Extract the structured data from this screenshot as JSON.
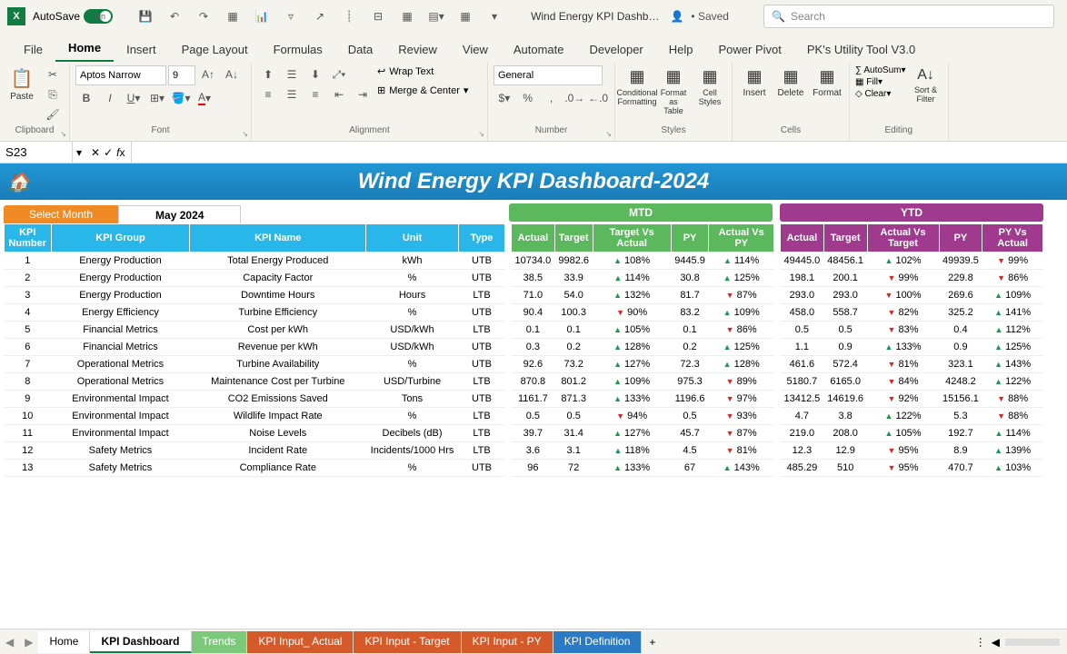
{
  "titlebar": {
    "autosave": "AutoSave",
    "autosave_on": "On",
    "doc": "Wind Energy KPI Dashb…",
    "saved": "• Saved",
    "search_ph": "Search"
  },
  "tabs": [
    "File",
    "Home",
    "Insert",
    "Page Layout",
    "Formulas",
    "Data",
    "Review",
    "View",
    "Automate",
    "Developer",
    "Help",
    "Power Pivot",
    "PK's Utility Tool V3.0"
  ],
  "ribbon": {
    "paste": "Paste",
    "clipboard": "Clipboard",
    "font_name": "Aptos Narrow",
    "font_size": "9",
    "font": "Font",
    "alignment": "Alignment",
    "wrap": "Wrap Text",
    "merge": "Merge & Center",
    "number_format": "General",
    "number": "Number",
    "cond": "Conditional Formatting",
    "fmtas": "Format as Table",
    "cellst": "Cell Styles",
    "styles": "Styles",
    "insert": "Insert",
    "delete": "Delete",
    "format": "Format",
    "cells": "Cells",
    "autosum": "AutoSum",
    "fill": "Fill",
    "clear": "Clear",
    "sort": "Sort & Filter",
    "editing": "Editing"
  },
  "namebox": "S23",
  "dashboard": {
    "title": "Wind Energy KPI Dashboard-2024",
    "select_month": "Select Month",
    "month": "May 2024",
    "mtd": "MTD",
    "ytd": "YTD"
  },
  "cols_main": [
    "KPI Number",
    "KPI Group",
    "KPI Name",
    "Unit",
    "Type"
  ],
  "cols_mtd": [
    "Actual",
    "Target",
    "Target Vs Actual",
    "PY",
    "Actual Vs PY"
  ],
  "cols_ytd": [
    "Actual",
    "Target",
    "Actual Vs Target",
    "PY",
    "PY Vs Actual"
  ],
  "rows": [
    {
      "n": "1",
      "g": "Energy Production",
      "name": "Total Energy Produced",
      "u": "kWh",
      "t": "UTB",
      "ma": "10734.0",
      "mt": "9982.6",
      "mtp": "108%",
      "mtpu": 1,
      "mpy": "9445.9",
      "map": "114%",
      "mapu": 1,
      "ya": "49445.0",
      "yt": "48456.1",
      "ytp": "102%",
      "ytpu": 1,
      "ypy": "49939.5",
      "yap": "99%",
      "yapu": 0
    },
    {
      "n": "2",
      "g": "Energy Production",
      "name": "Capacity Factor",
      "u": "%",
      "t": "UTB",
      "ma": "38.5",
      "mt": "33.9",
      "mtp": "114%",
      "mtpu": 1,
      "mpy": "30.8",
      "map": "125%",
      "mapu": 1,
      "ya": "198.1",
      "yt": "200.1",
      "ytp": "99%",
      "ytpu": 0,
      "ypy": "229.8",
      "yap": "86%",
      "yapu": 0
    },
    {
      "n": "3",
      "g": "Energy Production",
      "name": "Downtime Hours",
      "u": "Hours",
      "t": "LTB",
      "ma": "71.0",
      "mt": "54.0",
      "mtp": "132%",
      "mtpu": 1,
      "mpy": "81.7",
      "map": "87%",
      "mapu": 0,
      "ya": "293.0",
      "yt": "293.0",
      "ytp": "100%",
      "ytpu": 0,
      "ypy": "269.6",
      "yap": "109%",
      "yapu": 1
    },
    {
      "n": "4",
      "g": "Energy Efficiency",
      "name": "Turbine Efficiency",
      "u": "%",
      "t": "UTB",
      "ma": "90.4",
      "mt": "100.3",
      "mtp": "90%",
      "mtpu": 0,
      "mpy": "83.2",
      "map": "109%",
      "mapu": 1,
      "ya": "458.0",
      "yt": "558.7",
      "ytp": "82%",
      "ytpu": 0,
      "ypy": "325.2",
      "yap": "141%",
      "yapu": 1
    },
    {
      "n": "5",
      "g": "Financial Metrics",
      "name": "Cost per kWh",
      "u": "USD/kWh",
      "t": "LTB",
      "ma": "0.1",
      "mt": "0.1",
      "mtp": "105%",
      "mtpu": 1,
      "mpy": "0.1",
      "map": "86%",
      "mapu": 0,
      "ya": "0.5",
      "yt": "0.5",
      "ytp": "83%",
      "ytpu": 0,
      "ypy": "0.4",
      "yap": "112%",
      "yapu": 1
    },
    {
      "n": "6",
      "g": "Financial Metrics",
      "name": "Revenue per kWh",
      "u": "USD/kWh",
      "t": "UTB",
      "ma": "0.3",
      "mt": "0.2",
      "mtp": "128%",
      "mtpu": 1,
      "mpy": "0.2",
      "map": "125%",
      "mapu": 1,
      "ya": "1.1",
      "yt": "0.9",
      "ytp": "133%",
      "ytpu": 1,
      "ypy": "0.9",
      "yap": "125%",
      "yapu": 1
    },
    {
      "n": "7",
      "g": "Operational Metrics",
      "name": "Turbine Availability",
      "u": "%",
      "t": "UTB",
      "ma": "92.6",
      "mt": "73.2",
      "mtp": "127%",
      "mtpu": 1,
      "mpy": "72.3",
      "map": "128%",
      "mapu": 1,
      "ya": "461.6",
      "yt": "572.4",
      "ytp": "81%",
      "ytpu": 0,
      "ypy": "323.1",
      "yap": "143%",
      "yapu": 1
    },
    {
      "n": "8",
      "g": "Operational Metrics",
      "name": "Maintenance Cost per Turbine",
      "u": "USD/Turbine",
      "t": "LTB",
      "ma": "870.8",
      "mt": "801.2",
      "mtp": "109%",
      "mtpu": 1,
      "mpy": "975.3",
      "map": "89%",
      "mapu": 0,
      "ya": "5180.7",
      "yt": "6165.0",
      "ytp": "84%",
      "ytpu": 0,
      "ypy": "4248.2",
      "yap": "122%",
      "yapu": 1
    },
    {
      "n": "9",
      "g": "Environmental Impact",
      "name": "CO2 Emissions Saved",
      "u": "Tons",
      "t": "UTB",
      "ma": "1161.7",
      "mt": "871.3",
      "mtp": "133%",
      "mtpu": 1,
      "mpy": "1196.6",
      "map": "97%",
      "mapu": 0,
      "ya": "13412.5",
      "yt": "14619.6",
      "ytp": "92%",
      "ytpu": 0,
      "ypy": "15156.1",
      "yap": "88%",
      "yapu": 0
    },
    {
      "n": "10",
      "g": "Environmental Impact",
      "name": "Wildlife Impact Rate",
      "u": "%",
      "t": "LTB",
      "ma": "0.5",
      "mt": "0.5",
      "mtp": "94%",
      "mtpu": 0,
      "mpy": "0.5",
      "map": "93%",
      "mapu": 0,
      "ya": "4.7",
      "yt": "3.8",
      "ytp": "122%",
      "ytpu": 1,
      "ypy": "5.3",
      "yap": "88%",
      "yapu": 0
    },
    {
      "n": "11",
      "g": "Environmental Impact",
      "name": "Noise Levels",
      "u": "Decibels (dB)",
      "t": "LTB",
      "ma": "39.7",
      "mt": "31.4",
      "mtp": "127%",
      "mtpu": 1,
      "mpy": "45.7",
      "map": "87%",
      "mapu": 0,
      "ya": "219.0",
      "yt": "208.0",
      "ytp": "105%",
      "ytpu": 1,
      "ypy": "192.7",
      "yap": "114%",
      "yapu": 1
    },
    {
      "n": "12",
      "g": "Safety Metrics",
      "name": "Incident Rate",
      "u": "Incidents/1000 Hrs",
      "t": "LTB",
      "ma": "3.6",
      "mt": "3.1",
      "mtp": "118%",
      "mtpu": 1,
      "mpy": "4.5",
      "map": "81%",
      "mapu": 0,
      "ya": "12.3",
      "yt": "12.9",
      "ytp": "95%",
      "ytpu": 0,
      "ypy": "8.9",
      "yap": "139%",
      "yapu": 1
    },
    {
      "n": "13",
      "g": "Safety Metrics",
      "name": "Compliance Rate",
      "u": "%",
      "t": "UTB",
      "ma": "96",
      "mt": "72",
      "mtp": "133%",
      "mtpu": 1,
      "mpy": "67",
      "map": "143%",
      "mapu": 1,
      "ya": "485.29",
      "yt": "510",
      "ytp": "95%",
      "ytpu": 0,
      "ypy": "470.7",
      "yap": "103%",
      "yapu": 1
    }
  ],
  "sheets": [
    {
      "label": "Home",
      "cls": ""
    },
    {
      "label": "KPI Dashboard",
      "cls": "active"
    },
    {
      "label": "Trends",
      "cls": "c-green"
    },
    {
      "label": "KPI Input_ Actual",
      "cls": "c-orange"
    },
    {
      "label": "KPI Input - Target",
      "cls": "c-orange"
    },
    {
      "label": "KPI Input - PY",
      "cls": "c-orange"
    },
    {
      "label": "KPI Definition",
      "cls": "c-blue"
    }
  ]
}
